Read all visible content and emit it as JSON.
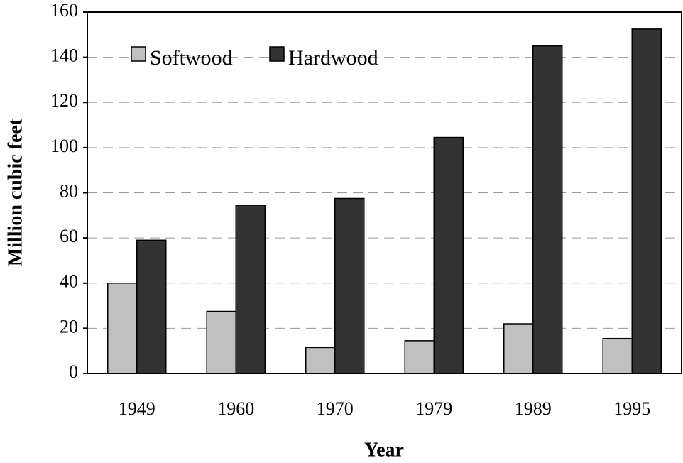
{
  "chart_data": {
    "type": "bar",
    "x_label": "Year",
    "y_label": "Million cubic feet",
    "categories": [
      "1949",
      "1960",
      "1970",
      "1979",
      "1989",
      "1995"
    ],
    "series": [
      {
        "name": "Softwood",
        "color": "#c0c0c0",
        "values": [
          40,
          27.5,
          11.5,
          14.5,
          22,
          15.5
        ]
      },
      {
        "name": "Hardwood",
        "color": "#333333",
        "values": [
          59,
          74.5,
          77.5,
          104.5,
          145,
          152.5
        ]
      }
    ],
    "ylim": [
      0,
      160
    ],
    "yticks": [
      0,
      20,
      40,
      60,
      80,
      100,
      120,
      140,
      160
    ],
    "grid": true,
    "legend": "top-left"
  }
}
